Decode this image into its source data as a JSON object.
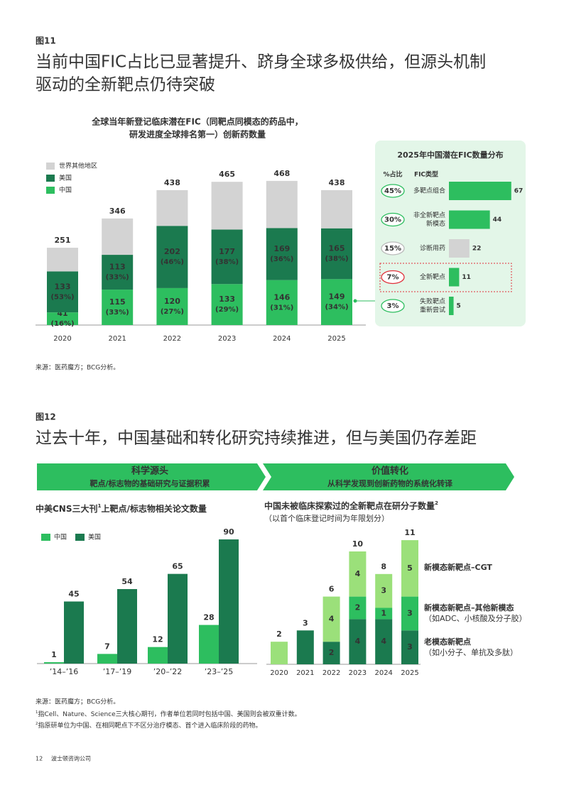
{
  "fig11": {
    "label": "图11",
    "title_lines": [
      "当前中国FIC占比已显著提升、跻身全球多极供给，但源头机制",
      "驱动的全新靶点仍待突破"
    ],
    "source": "来源：医药魔方；BCG分析。"
  },
  "fig12": {
    "label": "图12",
    "title": "过去十年，中国基础和转化研究持续推进，但与美国仍存差距",
    "banners": [
      {
        "title": "科学源头",
        "subtitle": "靶点/标志物的基础研究与证据积累"
      },
      {
        "title": "价值转化",
        "subtitle": "从科学发现到创新药物的系统化转译"
      }
    ],
    "source": "来源：医药魔方；BCG分析。",
    "footnotes": [
      {
        "mark": "1",
        "text": "指Cell、Nature、Science三大核心期刊，作者单位若同时包括中国、美国则会被双重计数。"
      },
      {
        "mark": "2",
        "text": "指原研单位为中国、在相同靶点下不区分治疗模态、首个进入临床阶段的药物。"
      }
    ]
  },
  "footer": {
    "page": "12",
    "company": "波士顿咨询公司"
  },
  "chart_data": [
    {
      "type": "stacked_bar",
      "title_lines": [
        "全球当年新登记临床潜在FIC（同靶点同模态的药品中，",
        "研发进度全球排名第一）创新药数量"
      ],
      "categories": [
        "2020",
        "2021",
        "2022",
        "2023",
        "2024",
        "2025"
      ],
      "series": [
        {
          "name": "中国",
          "color": "#2dbe5f",
          "values": [
            41,
            115,
            120,
            133,
            146,
            149
          ],
          "share_labels": [
            "(16%)",
            "(33%)",
            "(27%)",
            "(29%)",
            "(31%)",
            "(34%)"
          ]
        },
        {
          "name": "美国",
          "color": "#1b7a4f",
          "values": [
            133,
            113,
            202,
            177,
            169,
            165
          ],
          "share_labels": [
            "(53%)",
            "(33%)",
            "(46%)",
            "(38%)",
            "(36%)",
            "(38%)"
          ]
        },
        {
          "name": "世界其他地区",
          "color": "#d3d3d3",
          "values": [
            77,
            118,
            116,
            155,
            153,
            124
          ]
        }
      ],
      "totals": [
        251,
        346,
        438,
        465,
        468,
        438
      ]
    },
    {
      "type": "hbar",
      "title": "2025年中国潜在FIC数量分布",
      "share_header": "%占比",
      "category_header": "FIC类型",
      "categories": [
        [
          "多靶点组合"
        ],
        [
          "非全新靶点",
          "新模态"
        ],
        [
          "诊断用药"
        ],
        [
          "全新靶点"
        ],
        [
          "失败靶点",
          "重新尝试"
        ]
      ],
      "values": [
        67,
        44,
        22,
        11,
        5
      ],
      "colors": [
        "#2dbe5f",
        "#2dbe5f",
        "#d3d3d3",
        "#2dbe5f",
        "#2dbe5f"
      ],
      "share_labels": [
        "45%",
        "30%",
        "15%",
        "7%",
        "3%"
      ],
      "share_colors": [
        "#2dbe5f",
        "#2dbe5f",
        "#bbbbbb",
        "#e0303a",
        "#2dbe5f"
      ]
    },
    {
      "type": "grouped_bar",
      "title": "中美CNS三大刊",
      "title_mark": "1",
      "title_rest": "上靶点/标志物相关论文数量",
      "categories": [
        "’14–’16",
        "’17–’19",
        "’20–’22",
        "’23–’25"
      ],
      "series": [
        {
          "name": "中国",
          "color": "#2dbe5f",
          "values": [
            1,
            7,
            12,
            28
          ]
        },
        {
          "name": "美国",
          "color": "#1b7a4f",
          "values": [
            45,
            54,
            65,
            90
          ]
        }
      ]
    },
    {
      "type": "stacked_bar",
      "title": "中国未被临床探索过的全新靶点在研分子数量",
      "title_mark": "2",
      "subtitle": "（以首个临床登记时间为年限划分）",
      "categories": [
        "2020",
        "2021",
        "2022",
        "2023",
        "2024",
        "2025"
      ],
      "series": [
        {
          "name": "老模态新靶点",
          "note": "（如小分子、单抗及多肽）",
          "color": "#1b7a4f",
          "values": [
            0,
            3,
            2,
            4,
            4,
            3
          ]
        },
        {
          "name": "新模态新靶点–其他新模态",
          "note": "（如ADC、小核酸及分子胶）",
          "color": "#2dbe5f",
          "values": [
            0,
            0,
            0,
            2,
            1,
            3
          ]
        },
        {
          "name": "新模态新靶点–CGT",
          "color": "#9be07a",
          "values": [
            2,
            0,
            4,
            4,
            3,
            5
          ]
        }
      ],
      "totals": [
        2,
        3,
        6,
        10,
        8,
        11
      ]
    }
  ]
}
